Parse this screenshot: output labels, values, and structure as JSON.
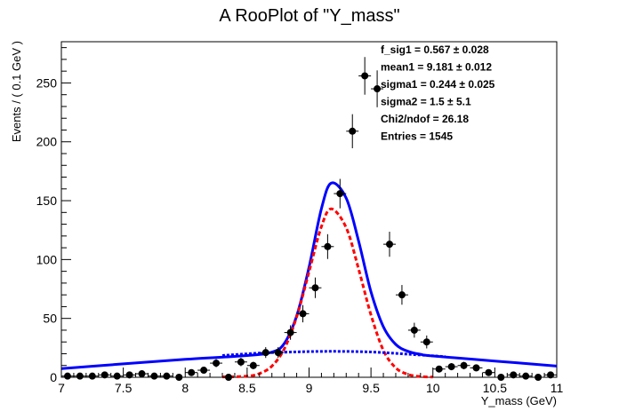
{
  "chart_data": {
    "type": "scatter",
    "title": "A RooPlot of \"Y_mass\"",
    "xlabel": "Y_mass (GeV)",
    "ylabel": "Events / ( 0.1 GeV )",
    "xlim": [
      7,
      11
    ],
    "ylim": [
      0,
      285
    ],
    "x_ticks": [
      "7",
      "7.5",
      "8",
      "8.5",
      "9",
      "9.5",
      "10",
      "10.5",
      "11"
    ],
    "y_ticks": [
      "0",
      "50",
      "100",
      "150",
      "200",
      "250"
    ],
    "stats": [
      {
        "label": "f_sig1 = ",
        "value": "0.567 ",
        "pm": "±",
        "error": " 0.028"
      },
      {
        "label": "mean1 = ",
        "value": "9.181 ",
        "pm": "±",
        "error": " 0.012"
      },
      {
        "label": "sigma1 = ",
        "value": "0.244 ",
        "pm": "±",
        "error": " 0.025"
      },
      {
        "label": "sigma2 = ",
        "value": "1.5 ",
        "pm": "±",
        "error": " 5.1"
      },
      {
        "label": "Chi2/ndof = ",
        "value": "26.18",
        "pm": "",
        "error": ""
      },
      {
        "label": "Entries = ",
        "value": "1545",
        "pm": "",
        "error": ""
      }
    ],
    "data_points": {
      "x": [
        7.05,
        7.15,
        7.25,
        7.35,
        7.45,
        7.55,
        7.65,
        7.75,
        7.85,
        7.95,
        8.05,
        8.15,
        8.25,
        8.35,
        8.45,
        8.55,
        8.65,
        8.75,
        8.85,
        8.95,
        9.05,
        9.15,
        9.25,
        9.35,
        9.45,
        9.55,
        9.65,
        9.75,
        9.85,
        9.95,
        10.05,
        10.15,
        10.25,
        10.35,
        10.45,
        10.55,
        10.65,
        10.75,
        10.85,
        10.95
      ],
      "y": [
        1,
        1,
        1,
        2,
        1,
        2,
        3,
        1,
        1,
        0,
        4,
        6,
        12,
        0,
        13,
        10,
        21,
        21,
        38,
        54,
        76,
        111,
        156,
        209,
        256,
        245,
        113,
        70,
        40,
        30,
        7,
        9,
        10,
        8,
        4,
        0,
        2,
        1,
        0,
        2
      ]
    },
    "series": [
      {
        "name": "",
        "style": "solid",
        "color": "#0000ff",
        "x": [
          7.0,
          7.5,
          8.0,
          8.5,
          8.7,
          8.8,
          8.9,
          9.0,
          9.1,
          9.18,
          9.3,
          9.4,
          9.5,
          9.6,
          9.7,
          9.8,
          9.9,
          10.0,
          10.5,
          11.0
        ],
        "y": [
          7.4,
          11.4,
          15.2,
          18.5,
          21.3,
          28.7,
          52.1,
          93.5,
          143.2,
          165.0,
          152.1,
          115.7,
          72.6,
          43.0,
          27.9,
          22.0,
          19.5,
          18.1,
          13.8,
          9.5
        ]
      },
      {
        "name": "",
        "style": "dashed",
        "color": "#ff0000",
        "x": [
          8.3,
          8.5,
          8.6,
          8.7,
          8.8,
          8.9,
          9.0,
          9.1,
          9.18,
          9.3,
          9.4,
          9.5,
          9.6,
          9.7,
          9.8,
          9.9,
          10.0
        ],
        "y": [
          0.3,
          0.9,
          3.2,
          9.5,
          24.2,
          51.4,
          89.7,
          128.0,
          143.0,
          127.0,
          92.0,
          53.0,
          23.0,
          8.0,
          2.4,
          0.6,
          0.2
        ]
      },
      {
        "name": "",
        "style": "dotted",
        "color": "#0000ff",
        "x": [
          8.3,
          8.6,
          8.9,
          9.18,
          9.5,
          9.8,
          10.1
        ],
        "y": [
          18.5,
          20.5,
          21.6,
          22.0,
          21.5,
          19.6,
          17.5
        ]
      }
    ],
    "grid": false,
    "legend": "none"
  }
}
